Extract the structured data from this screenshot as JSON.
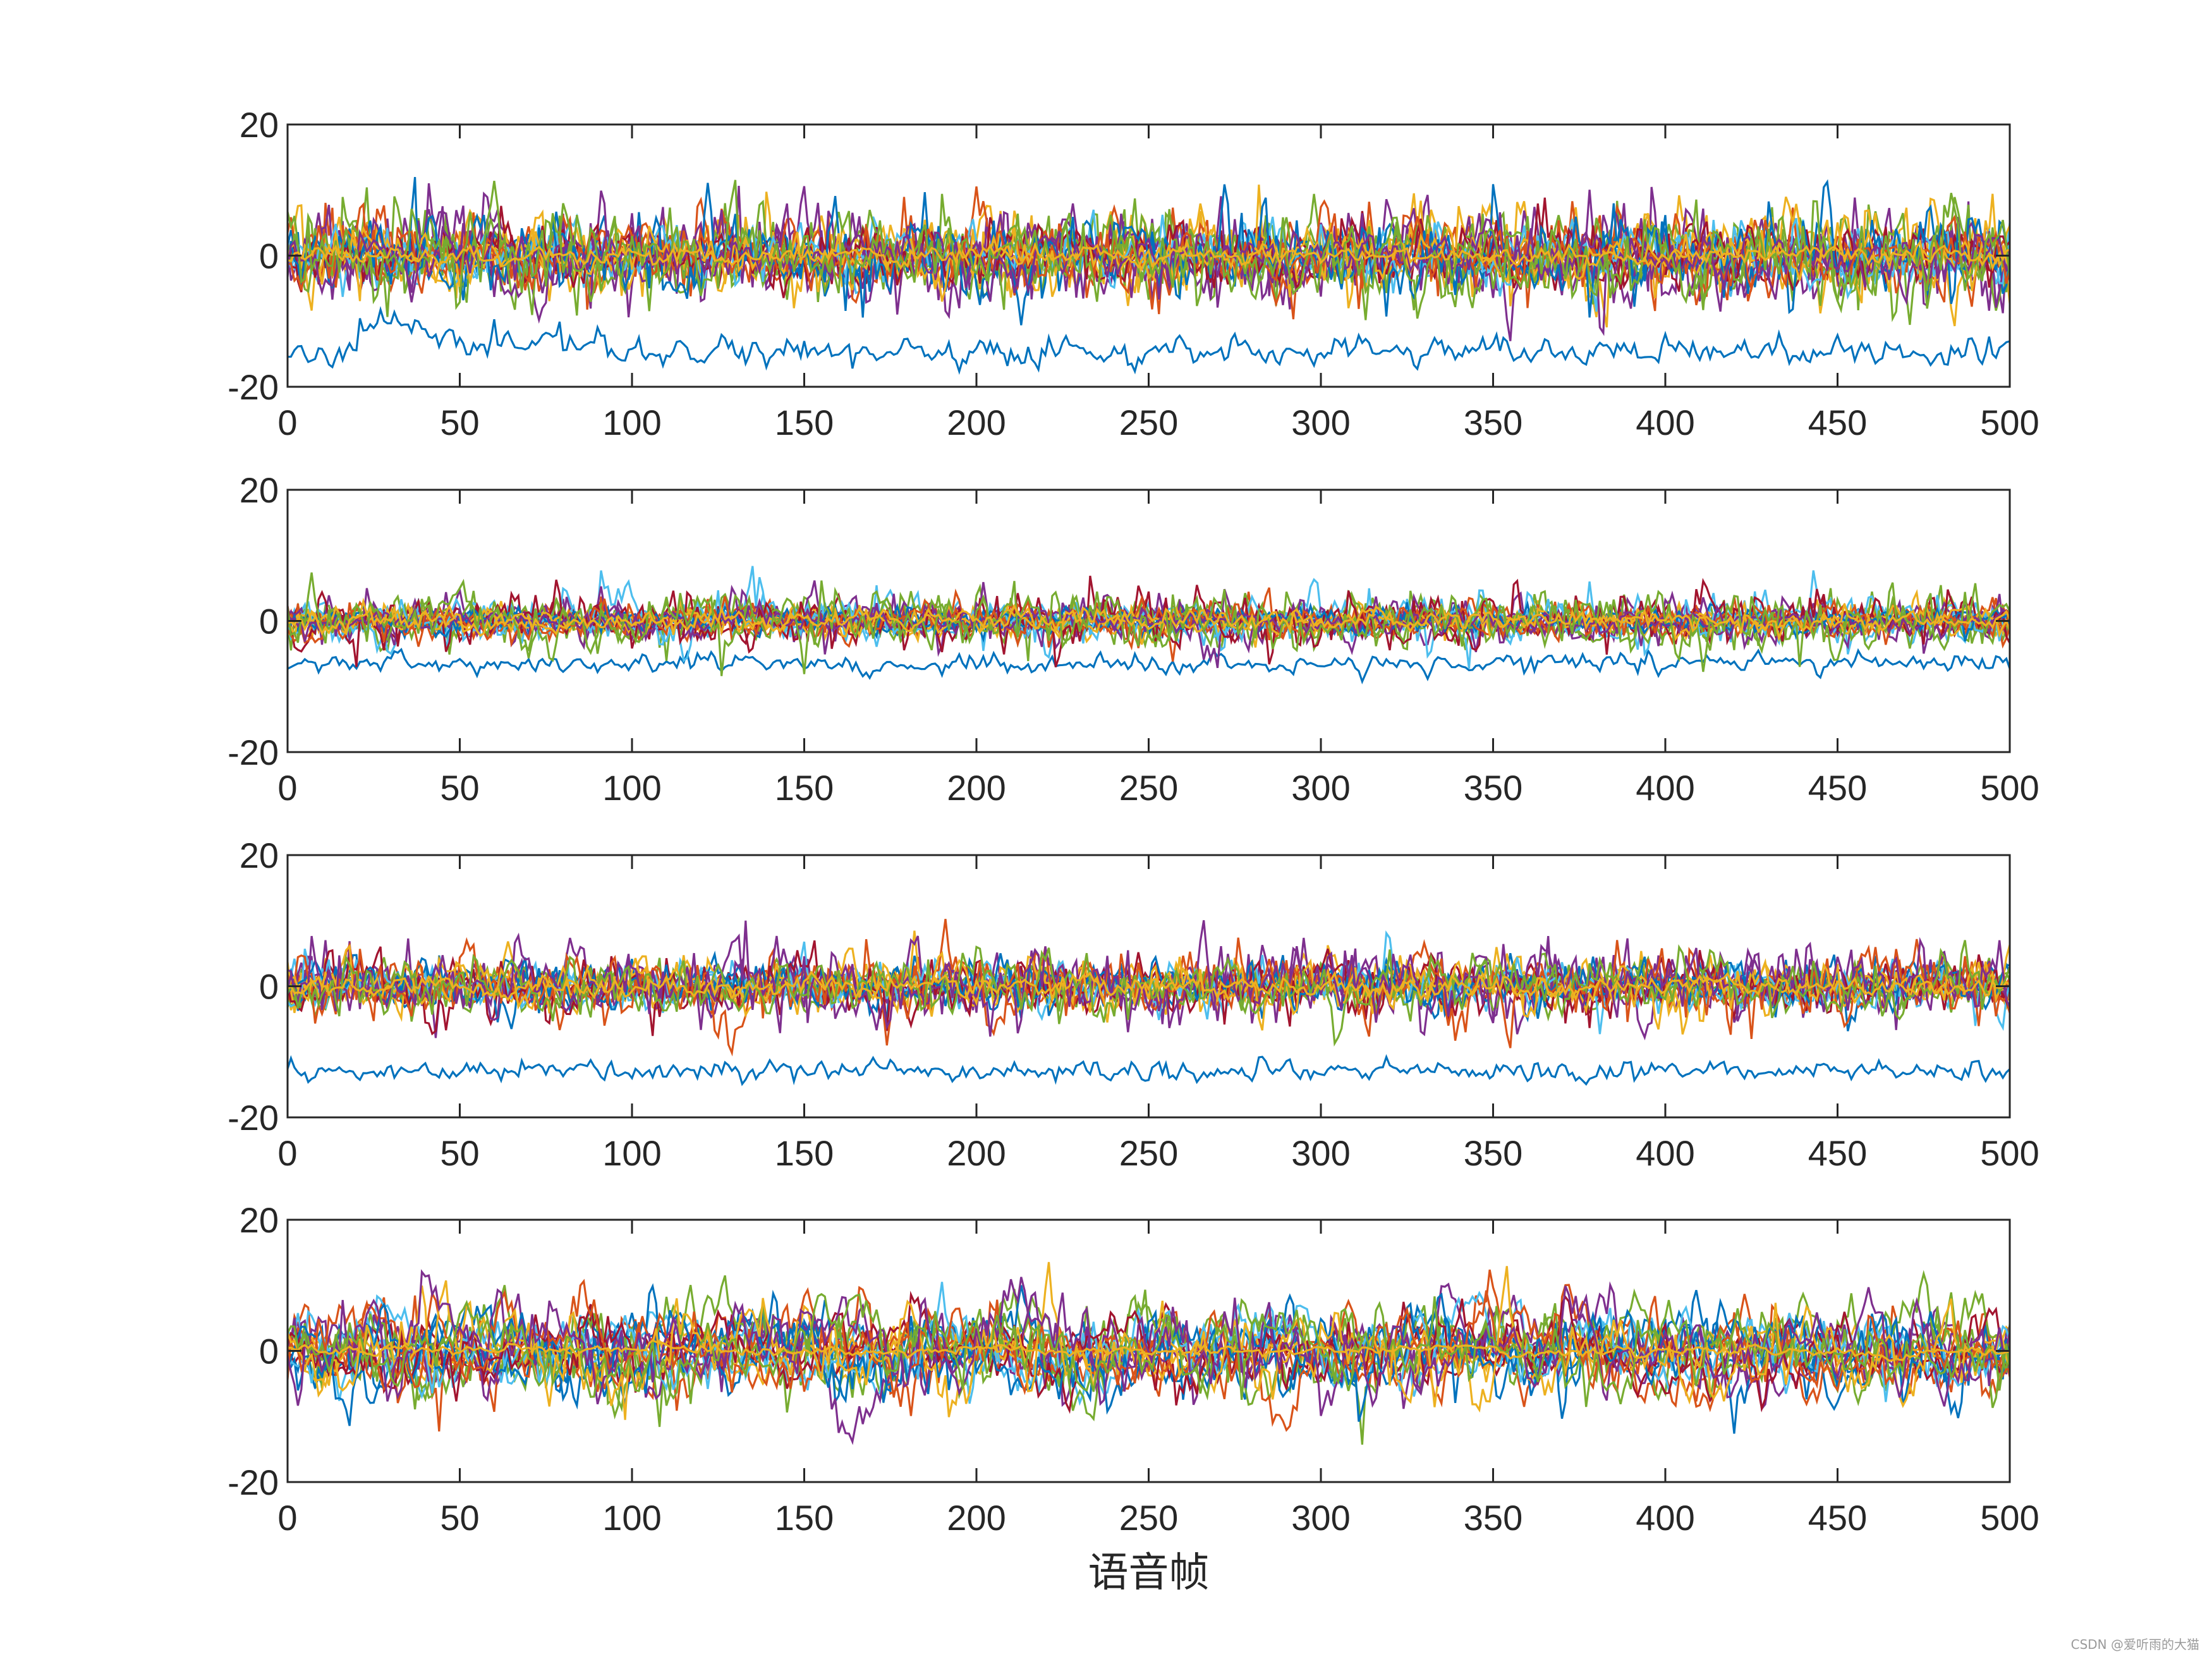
{
  "chart_data": {
    "type": "line",
    "layout": "4 stacked subplots sharing x-axis",
    "xlabel": "语音帧",
    "xlim": [
      0,
      500
    ],
    "ylim": [
      -20,
      20
    ],
    "xticks": [
      0,
      50,
      100,
      150,
      200,
      250,
      300,
      350,
      400,
      450,
      500
    ],
    "yticks": [
      -20,
      0,
      20
    ],
    "grid": false,
    "legend": "none",
    "series_colors": [
      "#0072BD",
      "#D95319",
      "#EDB120",
      "#7E2F8E",
      "#77AC30",
      "#4DBEEE",
      "#A2142F"
    ],
    "subplots": [
      {
        "num_series": 20,
        "outlier_series_level": -14.5,
        "main_band_amplitude": 4,
        "seed": 11
      },
      {
        "num_series": 20,
        "outlier_series_level": -6.5,
        "main_band_amplitude": 2.5,
        "seed": 23
      },
      {
        "num_series": 20,
        "outlier_series_level": -13,
        "main_band_amplitude": 3,
        "seed": 37
      },
      {
        "num_series": 20,
        "outlier_series_level": null,
        "main_band_amplitude": 7,
        "seed": 51
      }
    ],
    "x_range_points": 501
  },
  "watermark": "CSDN @爱听雨的大猫"
}
